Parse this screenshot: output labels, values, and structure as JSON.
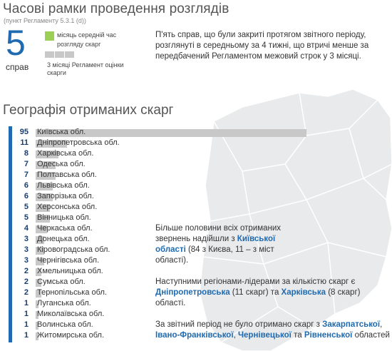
{
  "header": {
    "title": "Часові рамки проведення розглядів",
    "subtitle": "(пункт Регламенту 5.3.1 (d))"
  },
  "stat": {
    "count": "5",
    "unit": "справ"
  },
  "legend": {
    "green_label": "місяць середній час розгляду скарг",
    "grey_label": "3 місяці Регламент оцінки скарги",
    "green_color": "#9ccf55",
    "grey_color": "#c8c8c8"
  },
  "intro_text": "П'ять справ, що були закриті протягом звітного періоду, розглянуті в середньому за 4 тижні, що втричі менше за передбачений Регламентом межовий строк у 3 місяці.",
  "geo": {
    "title": "Географія отриманих скарг"
  },
  "chart_data": {
    "type": "bar",
    "categories": [
      "Київська обл.",
      "Дніпропетровська обл.",
      "Харківська обл.",
      "Одеська обл.",
      "Полтавська обл.",
      "Львівська обл.",
      "Запорізька обл.",
      "Херсонська обл.",
      "Вінницька обл.",
      "Черкаська обл.",
      "Донецька обл.",
      "Кіровоградська обл.",
      "Чернігівська обл.",
      "Хмельницька обл.",
      "Сумська обл.",
      "Тернопільська обл.",
      "Луганська обл.",
      "Миколаївська обл.",
      "Волинська обл.",
      "Житомирська обл."
    ],
    "values": [
      95,
      11,
      8,
      7,
      7,
      6,
      6,
      5,
      5,
      4,
      3,
      3,
      3,
      2,
      2,
      2,
      1,
      1,
      1,
      1
    ],
    "accent_color": "#1f6ab0"
  },
  "notes": {
    "n1_pre": "Більше половини всіх отриманих звернень надійшли з ",
    "n1_bold": "Київської області",
    "n1_post": " (84 з Києва, 11 – з міст області).",
    "n2_pre": "Наступними регіонами-лідерами за кількістю скарг є ",
    "n2_b1": "Дніпропетровська",
    "n2_mid": " (11 скарг) та ",
    "n2_b2": "Харківська",
    "n2_post": " (8 скарг) області.",
    "n3_pre": "За звітний період не було отримано скарг з ",
    "n3_b1": "Закарпатської",
    "n3_c1": ", ",
    "n3_b2": "Івано-Франківської",
    "n3_c2": ", ",
    "n3_b3": "Чернівецької",
    "n3_c3": " та ",
    "n3_b4": "Рівненської",
    "n3_post": " областей"
  }
}
